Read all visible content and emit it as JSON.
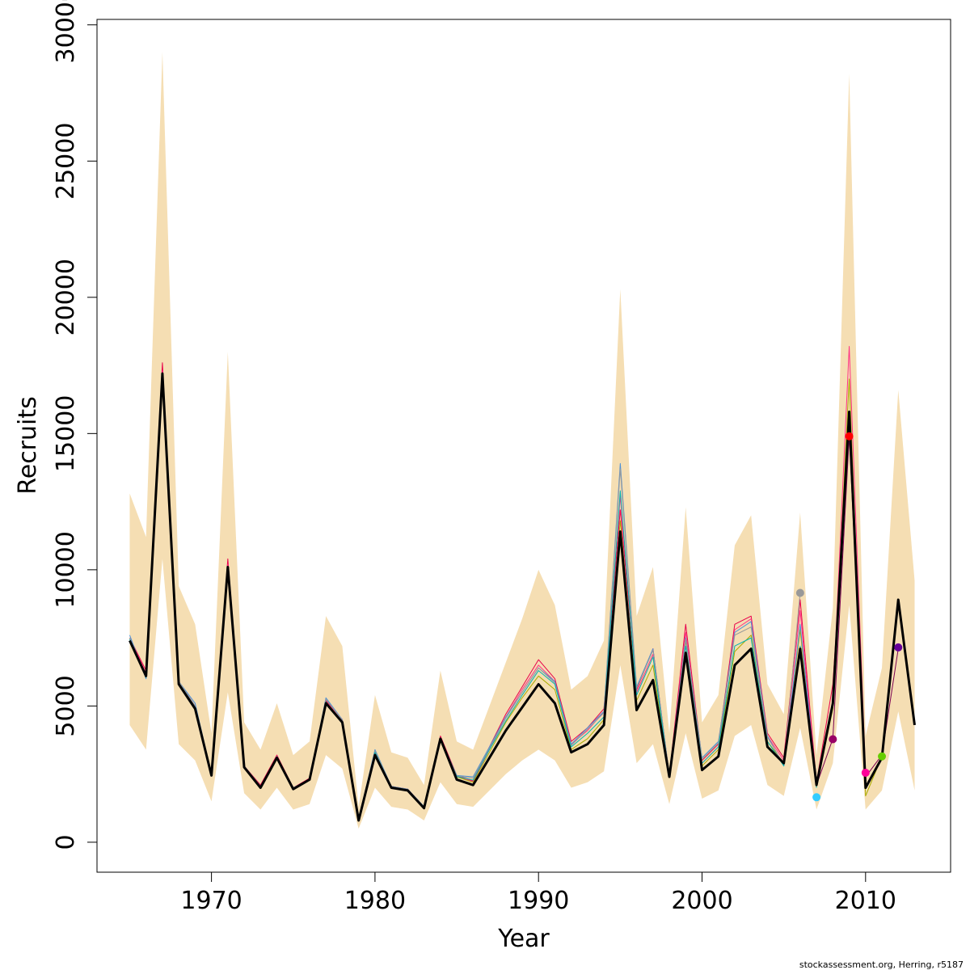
{
  "chart_data": {
    "type": "line",
    "xlabel": "Year",
    "ylabel": "Recruits",
    "xlim": [
      1963,
      2015.2
    ],
    "ylim": [
      -1100,
      30200
    ],
    "x_ticks": [
      "1970",
      "1980",
      "1990",
      "2000",
      "2010"
    ],
    "x_tick_values": [
      1970,
      1980,
      1990,
      2000,
      2010
    ],
    "y_ticks": [
      "0",
      "5000",
      "10000",
      "15000",
      "20000",
      "25000",
      "30000"
    ],
    "y_tick_values": [
      0,
      5000,
      10000,
      15000,
      20000,
      25000,
      30000
    ],
    "grid": false,
    "legend": "none",
    "credit": "stockassessment.org, Herring, r5187",
    "band": {
      "color": "#f5deb3",
      "x": [
        1965,
        1966,
        1967,
        1968,
        1969,
        1970,
        1971,
        1972,
        1973,
        1974,
        1975,
        1976,
        1977,
        1978,
        1979,
        1980,
        1981,
        1982,
        1983,
        1984,
        1985,
        1986,
        1987,
        1988,
        1989,
        1990,
        1991,
        1992,
        1993,
        1994,
        1995,
        1996,
        1997,
        1998,
        1999,
        2000,
        2001,
        2002,
        2003,
        2004,
        2005,
        2006,
        2007,
        2008,
        2009,
        2010,
        2011,
        2012,
        2013
      ],
      "upper": [
        12800,
        11200,
        29000,
        9400,
        8000,
        4000,
        18000,
        4400,
        3400,
        5100,
        3200,
        3700,
        8300,
        7200,
        1300,
        5400,
        3300,
        3100,
        2100,
        6300,
        3700,
        3400,
        5000,
        6600,
        8200,
        10000,
        8700,
        5600,
        6100,
        7400,
        20300,
        8300,
        10100,
        4000,
        12300,
        4400,
        5400,
        10900,
        12000,
        5800,
        4700,
        12100,
        3200,
        8600,
        28200,
        3900,
        6400,
        16600,
        9600
      ],
      "lower": [
        4300,
        3400,
        10400,
        3600,
        3000,
        1500,
        5500,
        1800,
        1200,
        2000,
        1200,
        1400,
        3200,
        2700,
        500,
        2000,
        1300,
        1200,
        800,
        2200,
        1400,
        1300,
        1900,
        2500,
        3000,
        3400,
        3000,
        2000,
        2200,
        2600,
        6500,
        2900,
        3600,
        1400,
        4000,
        1600,
        1900,
        3900,
        4300,
        2100,
        1700,
        4200,
        1200,
        2900,
        8700,
        1200,
        1900,
        4800,
        1900
      ]
    },
    "series": [
      {
        "color": "#e8004a",
        "width": 1,
        "x": [
          1965,
          1966,
          1967,
          1968,
          1969,
          1970,
          1971,
          1972,
          1973,
          1974,
          1975,
          1976,
          1977,
          1978,
          1979,
          1980,
          1981,
          1982,
          1983,
          1984,
          1985,
          1986,
          1987,
          1988,
          1989,
          1990,
          1991,
          1992,
          1993,
          1994,
          1995,
          1996,
          1997,
          1998,
          1999,
          2000,
          2001,
          2002,
          2003,
          2004,
          2005,
          2006,
          2007,
          2008,
          2009
        ],
        "y": [
          7500,
          6300,
          17600,
          5900,
          5000,
          2500,
          10400,
          2800,
          2100,
          3200,
          2000,
          2350,
          5200,
          4500,
          850,
          3300,
          2050,
          1950,
          1300,
          3900,
          2450,
          2250,
          3500,
          4700,
          5700,
          6700,
          6000,
          3700,
          4200,
          4900,
          12200,
          5600,
          7100,
          2450,
          8000,
          3000,
          3600,
          8000,
          8300,
          4000,
          3100,
          8900,
          2200,
          5800,
          14900
        ]
      },
      {
        "color": "#ff3385",
        "width": 1,
        "x": [
          1965,
          1966,
          1967,
          1968,
          1969,
          1970,
          1971,
          1972,
          1973,
          1974,
          1975,
          1976,
          1977,
          1978,
          1979,
          1980,
          1981,
          1982,
          1983,
          1984,
          1985,
          1986,
          1987,
          1988,
          1989,
          1990,
          1991,
          1992,
          1993,
          1994,
          1995,
          1996,
          1997,
          1998,
          1999,
          2000,
          2001,
          2002,
          2003,
          2004,
          2005,
          2006,
          2007,
          2008,
          2009,
          2010
        ],
        "y": [
          7500,
          6200,
          17300,
          5800,
          4900,
          2450,
          10200,
          2800,
          2050,
          3150,
          2000,
          2300,
          5150,
          4450,
          850,
          3250,
          2030,
          1930,
          1290,
          3850,
          2420,
          2230,
          3400,
          4600,
          5600,
          6500,
          5900,
          3600,
          4100,
          4800,
          12700,
          5500,
          6900,
          2420,
          7700,
          2900,
          3500,
          7800,
          8200,
          3900,
          3000,
          8500,
          2100,
          5200,
          18200,
          2500
        ]
      },
      {
        "color": "#aaaa00",
        "width": 1,
        "x": [
          1965,
          1966,
          1967,
          1968,
          1969,
          1970,
          1971,
          1972,
          1973,
          1974,
          1975,
          1976,
          1977,
          1978,
          1979,
          1980,
          1981,
          1982,
          1983,
          1984,
          1985,
          1986,
          1987,
          1988,
          1989,
          1990,
          1991,
          1992,
          1993,
          1994,
          1995,
          1996,
          1997,
          1998,
          1999,
          2000,
          2001,
          2002,
          2003,
          2004,
          2005,
          2006,
          2007,
          2008,
          2009,
          2010,
          2011
        ],
        "y": [
          7450,
          6100,
          17000,
          5800,
          4850,
          2450,
          10000,
          2750,
          2030,
          3100,
          1980,
          2300,
          5100,
          4400,
          840,
          3200,
          2020,
          1920,
          1280,
          3800,
          2400,
          2200,
          3300,
          4400,
          5300,
          6100,
          5600,
          3400,
          3800,
          4500,
          11800,
          5200,
          6500,
          2400,
          7400,
          2800,
          3400,
          7000,
          7600,
          3700,
          2900,
          7800,
          2050,
          4900,
          17000,
          1700,
          3150
        ]
      },
      {
        "color": "#4a90d9",
        "width": 1,
        "x": [
          1965,
          1966,
          1967,
          1968,
          1969,
          1970,
          1971,
          1972,
          1973,
          1974,
          1975,
          1976,
          1977,
          1978,
          1979,
          1980,
          1981,
          1982,
          1983,
          1984,
          1985,
          1986,
          1987,
          1988,
          1989,
          1990,
          1991,
          1992,
          1993,
          1994,
          1995,
          1996,
          1997,
          1998,
          1999,
          2000,
          2001,
          2002,
          2003,
          2004,
          2005,
          2006,
          2007
        ],
        "y": [
          7600,
          6000,
          16900,
          5900,
          5100,
          2500,
          10100,
          2800,
          2050,
          3150,
          2000,
          2300,
          5300,
          4500,
          860,
          3400,
          2050,
          1950,
          1310,
          3800,
          2450,
          2400,
          3500,
          4600,
          5500,
          6400,
          5900,
          3600,
          4200,
          4800,
          13900,
          5700,
          7100,
          2450,
          7500,
          3100,
          3700,
          7700,
          8100,
          3900,
          2800,
          8000,
          2100
        ]
      },
      {
        "color": "#999999",
        "width": 1,
        "x": [
          1965,
          1966,
          1967,
          1968,
          1969,
          1970,
          1971,
          1972,
          1973,
          1974,
          1975,
          1976,
          1977,
          1978,
          1979,
          1980,
          1981,
          1982,
          1983,
          1984,
          1985,
          1986,
          1987,
          1988,
          1989,
          1990,
          1991,
          1992,
          1993,
          1994,
          1995,
          1996,
          1997,
          1998,
          1999,
          2000,
          2001,
          2002,
          2003,
          2004,
          2005,
          2006
        ],
        "y": [
          7500,
          6100,
          17000,
          5900,
          5000,
          2500,
          10100,
          2800,
          2050,
          3150,
          2000,
          2300,
          5250,
          4480,
          850,
          3350,
          2040,
          1940,
          1300,
          3820,
          2430,
          2350,
          3450,
          4550,
          5500,
          6400,
          5850,
          3550,
          4150,
          4750,
          13700,
          5650,
          7050,
          2430,
          7450,
          3050,
          3650,
          7600,
          7900,
          3850,
          2850,
          9150
        ]
      },
      {
        "color": "#00b3b3",
        "width": 1,
        "x": [
          1965,
          1966,
          1967,
          1968,
          1969,
          1970,
          1971,
          1972,
          1973,
          1974,
          1975,
          1976,
          1977,
          1978,
          1979,
          1980,
          1981,
          1982,
          1983,
          1984,
          1985,
          1986,
          1987,
          1988,
          1989,
          1990,
          1991,
          1992,
          1993,
          1994,
          1995,
          1996,
          1997,
          1998,
          1999,
          2000,
          2001,
          2002,
          2003,
          2004,
          2005,
          2006,
          2007
        ],
        "y": [
          7450,
          6050,
          16900,
          5850,
          4950,
          2480,
          10000,
          2780,
          2040,
          3120,
          1990,
          2290,
          5150,
          4420,
          845,
          3300,
          2030,
          1930,
          1290,
          3800,
          2410,
          2280,
          3400,
          4450,
          5400,
          6300,
          5800,
          3500,
          4000,
          4600,
          12900,
          5400,
          6800,
          2410,
          7200,
          2900,
          3500,
          7200,
          7500,
          3700,
          2800,
          7200,
          2000
        ]
      },
      {
        "color": "#7a0050",
        "width": 1,
        "x": [
          2006,
          2007,
          2008,
          2009,
          2010,
          2011,
          2012
        ],
        "y": [
          7000,
          2100,
          3800,
          14900,
          2400,
          3200,
          7100
        ]
      },
      {
        "color": "#000000",
        "width": 3,
        "x": [
          1965,
          1966,
          1967,
          1968,
          1969,
          1970,
          1971,
          1972,
          1973,
          1974,
          1975,
          1976,
          1977,
          1978,
          1979,
          1980,
          1981,
          1982,
          1983,
          1984,
          1985,
          1986,
          1987,
          1988,
          1989,
          1990,
          1991,
          1992,
          1993,
          1994,
          1995,
          1996,
          1997,
          1998,
          1999,
          2000,
          2001,
          2002,
          2003,
          2004,
          2005,
          2006,
          2007,
          2008,
          2009,
          2010,
          2011,
          2012,
          2013
        ],
        "y": [
          7400,
          6100,
          17200,
          5800,
          4900,
          2450,
          10100,
          2750,
          2000,
          3100,
          1950,
          2300,
          5100,
          4400,
          800,
          3200,
          2000,
          1900,
          1250,
          3800,
          2300,
          2100,
          3100,
          4100,
          4950,
          5800,
          5100,
          3300,
          3600,
          4300,
          11400,
          4850,
          5950,
          2400,
          6950,
          2650,
          3150,
          6500,
          7100,
          3500,
          2900,
          7100,
          2100,
          5100,
          15800,
          2000,
          3100,
          8900,
          4300
        ]
      }
    ],
    "markers": [
      {
        "x": 2006,
        "y": 9150,
        "color": "#999999"
      },
      {
        "x": 2007,
        "y": 1650,
        "color": "#33ccff"
      },
      {
        "x": 2008,
        "y": 3780,
        "color": "#990066"
      },
      {
        "x": 2009,
        "y": 14900,
        "color": "#ff0000"
      },
      {
        "x": 2010,
        "y": 2550,
        "color": "#ff0099"
      },
      {
        "x": 2011,
        "y": 3150,
        "color": "#66cc00"
      },
      {
        "x": 2012,
        "y": 7150,
        "color": "#660099"
      }
    ]
  }
}
